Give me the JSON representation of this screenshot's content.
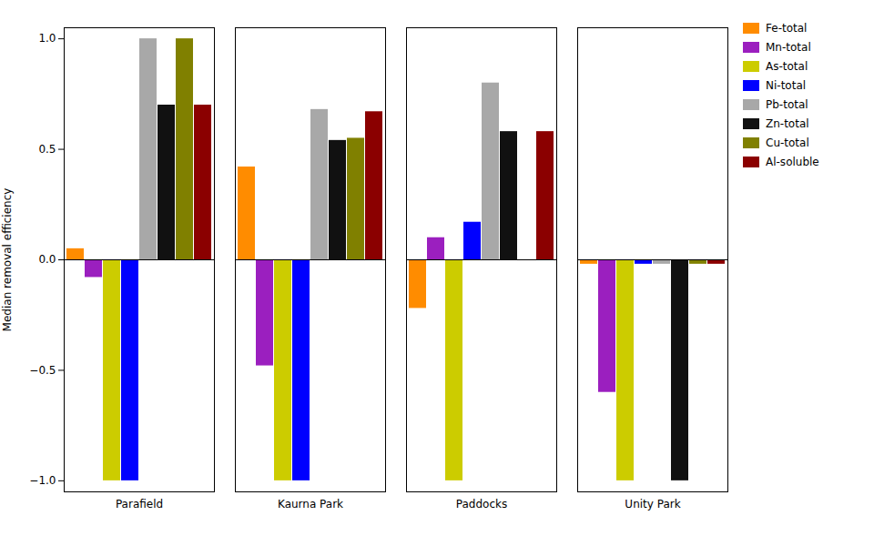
{
  "chart_data": {
    "type": "bar",
    "categories": [
      "Parafield",
      "Kaurna Park",
      "Paddocks",
      "Unity Park"
    ],
    "series": [
      {
        "name": "Fe-total",
        "color": "#FF8C00",
        "values": [
          0.05,
          0.42,
          -0.22,
          -0.02
        ]
      },
      {
        "name": "Mn-total",
        "color": "#9B1FBF",
        "values": [
          -0.08,
          -0.48,
          0.1,
          -0.6
        ]
      },
      {
        "name": "As-total",
        "color": "#CCCC00",
        "values": [
          -1.0,
          -1.0,
          -1.0,
          -1.0
        ]
      },
      {
        "name": "Ni-total",
        "color": "#0000FF",
        "values": [
          -1.0,
          -1.0,
          0.17,
          -0.02
        ]
      },
      {
        "name": "Pb-total",
        "color": "#A8A8A8",
        "values": [
          1.0,
          0.68,
          0.8,
          -0.02
        ]
      },
      {
        "name": "Zn-total",
        "color": "#111111",
        "values": [
          0.7,
          0.54,
          0.58,
          -1.0
        ]
      },
      {
        "name": "Cu-total",
        "color": "#808000",
        "values": [
          1.0,
          0.55,
          0.0,
          -0.02
        ]
      },
      {
        "name": "Al-soluble",
        "color": "#8B0000",
        "values": [
          0.7,
          0.67,
          0.58,
          -0.02
        ]
      }
    ],
    "ylabel": "Median removal efficiency",
    "ylim": [
      -1.05,
      1.05
    ],
    "yticks": [
      {
        "value": -1.0,
        "label": "−1.0"
      },
      {
        "value": -0.5,
        "label": "−0.5"
      },
      {
        "value": 0.0,
        "label": "0.0"
      },
      {
        "value": 0.5,
        "label": "0.5"
      },
      {
        "value": 1.0,
        "label": "1.0"
      }
    ],
    "grid": false,
    "legend": "right"
  }
}
